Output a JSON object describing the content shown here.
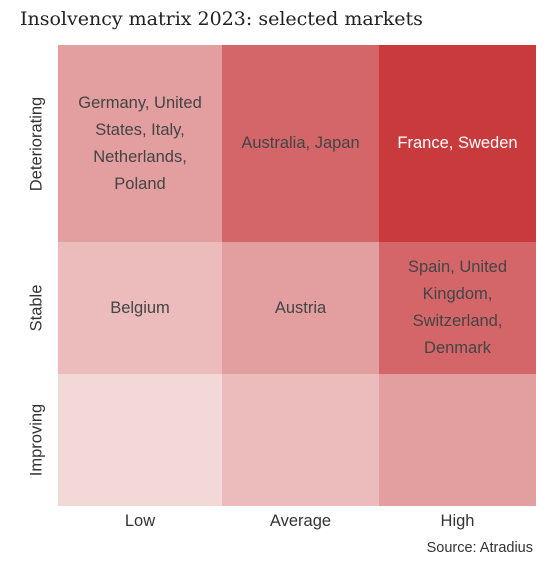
{
  "title": "Insolvency matrix 2023: selected markets",
  "source": "Source: Atradius",
  "chart_data": {
    "type": "heatmap",
    "title": "Insolvency matrix 2023: selected markets",
    "x_categories": [
      "Low",
      "Average",
      "High"
    ],
    "y_categories": [
      "Deteriorating",
      "Stable",
      "Improving"
    ],
    "cells": [
      {
        "row": "Deteriorating",
        "col": "Low",
        "text": "Germany, United States, Italy, Netherlands, Poland",
        "level": 2,
        "color": "#e39ea0"
      },
      {
        "row": "Deteriorating",
        "col": "Average",
        "text": "Australia, Japan",
        "level": 3,
        "color": "#d4666a"
      },
      {
        "row": "Deteriorating",
        "col": "High",
        "text": "France, Sweden",
        "level": 4,
        "color": "#c83a3b"
      },
      {
        "row": "Stable",
        "col": "Low",
        "text": "Belgium",
        "level": 1,
        "color": "#ecbcbc"
      },
      {
        "row": "Stable",
        "col": "Average",
        "text": "Austria",
        "level": 2,
        "color": "#e39ea0"
      },
      {
        "row": "Stable",
        "col": "High",
        "text": "Spain, United Kingdom, Switzerland, Denmark",
        "level": 3,
        "color": "#d4666a"
      },
      {
        "row": "Improving",
        "col": "Low",
        "text": "",
        "level": 0,
        "color": "#f3d8d8"
      },
      {
        "row": "Improving",
        "col": "Average",
        "text": "",
        "level": 1,
        "color": "#ecbcbc"
      },
      {
        "row": "Improving",
        "col": "High",
        "text": "",
        "level": 2,
        "color": "#e39ea0"
      }
    ]
  }
}
